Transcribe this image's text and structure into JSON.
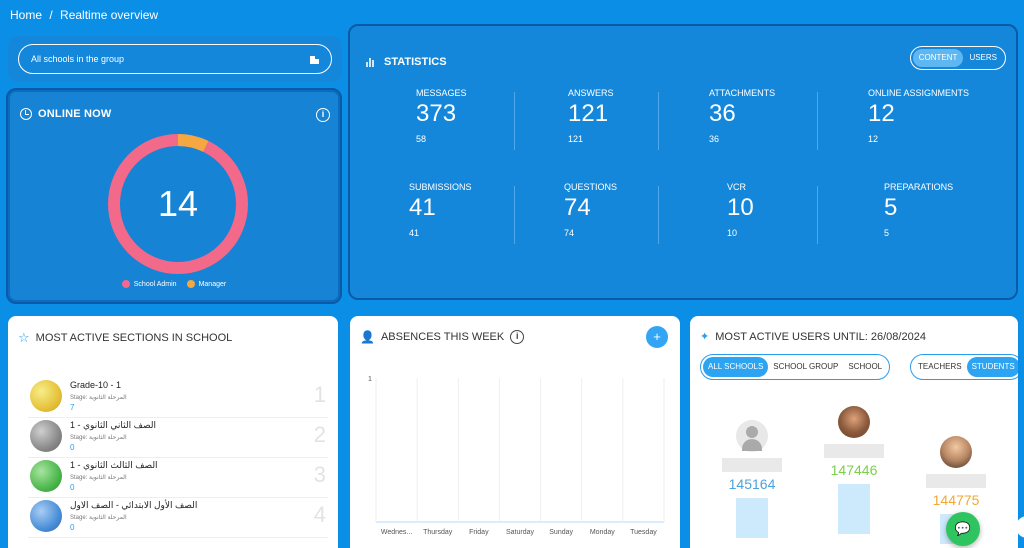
{
  "breadcrumb": {
    "home": "Home",
    "sep": "/",
    "current": "Realtime overview"
  },
  "school_selector": {
    "value": "All schools in the group",
    "icon": "building-icon"
  },
  "online_now": {
    "title": "ONLINE NOW",
    "total": "14",
    "segments": [
      {
        "label": "School Admin",
        "value": 13,
        "color": "#f2698a"
      },
      {
        "label": "Manager",
        "value": 1,
        "color": "#f5a742"
      }
    ]
  },
  "statistics": {
    "title": "STATISTICS",
    "toggle": {
      "content": "CONTENT",
      "users": "USERS",
      "active": "CONTENT"
    },
    "items": [
      {
        "label": "MESSAGES",
        "value": "373",
        "sub": "58"
      },
      {
        "label": "ANSWERS",
        "value": "121",
        "sub": "121"
      },
      {
        "label": "ATTACHMENTS",
        "value": "36",
        "sub": "36"
      },
      {
        "label": "ONLINE ASSIGNMENTS",
        "value": "12",
        "sub": "12"
      },
      {
        "label": "SUBMISSIONS",
        "value": "41",
        "sub": "41"
      },
      {
        "label": "QUESTIONS",
        "value": "74",
        "sub": "74"
      },
      {
        "label": "VCR",
        "value": "10",
        "sub": "10"
      },
      {
        "label": "PREPARATIONS",
        "value": "5",
        "sub": "5"
      }
    ]
  },
  "sections": {
    "title": "MOST ACTIVE SECTIONS IN SCHOOL",
    "items": [
      {
        "name": "Grade-10 - 1",
        "stage": "Stage: المرحلة الثانوية",
        "count": "7",
        "rank": "1",
        "color": "#e6d84a"
      },
      {
        "name": "الصف الثاني الثانوي - 1",
        "stage": "Stage: المرحلة الثانوية",
        "count": "0",
        "rank": "2",
        "color": "#8a8a8a"
      },
      {
        "name": "الصف الثالث الثانوي - 1",
        "stage": "Stage: المرحلة الثانوية",
        "count": "0",
        "rank": "3",
        "color": "#4cb84c"
      },
      {
        "name": "الصف الأول الابتدائي - الصف الاول",
        "stage": "Stage: المرحلة الثانوية",
        "count": "0",
        "rank": "4",
        "color": "#4a8fd8"
      }
    ]
  },
  "absences": {
    "title": "ABSENCES THIS WEEK",
    "ytick": "1"
  },
  "chart_data": {
    "type": "bar",
    "categories": [
      "Wednes...",
      "Thursday",
      "Friday",
      "Saturday",
      "Sunday",
      "Monday",
      "Tuesday"
    ],
    "values": [
      0,
      0,
      0,
      0,
      0,
      0,
      0
    ],
    "title": "ABSENCES THIS WEEK",
    "xlabel": "",
    "ylabel": "",
    "ylim": [
      0,
      1
    ]
  },
  "users": {
    "title": "MOST ACTIVE USERS UNTIL: 26/08/2024",
    "scope": {
      "all": "ALL SCHOOLS",
      "group": "SCHOOL GROUP",
      "school": "SCHOOL",
      "active": "ALL SCHOOLS"
    },
    "role": {
      "teachers": "TEACHERS",
      "students": "STUDENTS",
      "active": "STUDENTS"
    },
    "podium": [
      {
        "place": "2",
        "score": "145164",
        "color": "#4da3d9"
      },
      {
        "place": "1",
        "score": "147446",
        "color": "#7ccf4a"
      },
      {
        "place": "3",
        "score": "144775",
        "color": "#f0a935"
      }
    ]
  },
  "chat": {
    "icon": "chat-icon"
  }
}
